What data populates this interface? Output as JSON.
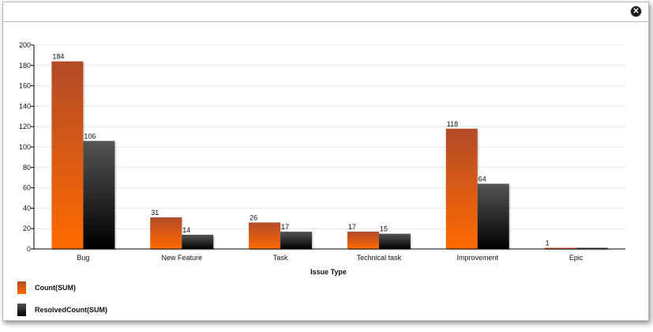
{
  "dialog": {
    "close_icon": "close-icon",
    "close_glyph": "✕"
  },
  "colors": {
    "count_top": "#b24a28",
    "count_bottom": "#ff6a00",
    "resolved_top": "#555555",
    "resolved_bottom": "#000000",
    "grid": "#e6e6e6",
    "axis": "#000000"
  },
  "chart_data": {
    "type": "bar",
    "categories": [
      "Bug",
      "New Feature",
      "Task",
      "Technical task",
      "Improvement",
      "Epic"
    ],
    "series": [
      {
        "name": "Count(SUM)",
        "values": [
          184,
          31,
          26,
          17,
          118,
          1
        ]
      },
      {
        "name": "ResolvedCount(SUM)",
        "values": [
          106,
          14,
          17,
          15,
          64,
          null
        ]
      }
    ],
    "title": "",
    "xlabel": "Issue Type",
    "ylabel": "",
    "ylim": [
      0,
      200
    ],
    "yticks": [
      0,
      20,
      40,
      60,
      80,
      100,
      120,
      140,
      160,
      180,
      200
    ],
    "grid": true,
    "legend": "bottom-left"
  }
}
